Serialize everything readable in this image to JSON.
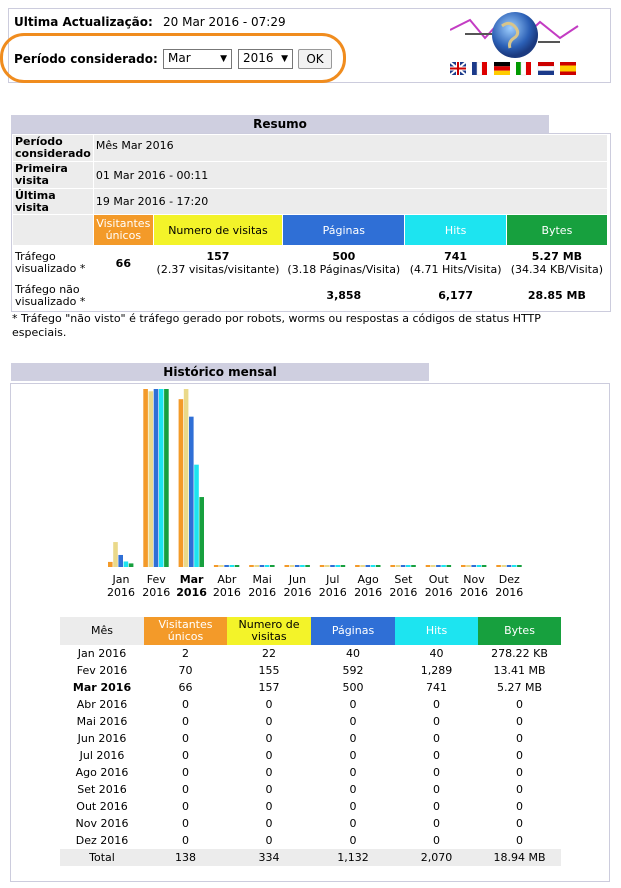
{
  "header": {
    "last_update_label": "Ultima Actualização:",
    "last_update_value": "20 Mar 2016 - 07:29",
    "period_label": "Período considerado:",
    "month_value": "Mar",
    "year_value": "2016",
    "ok_label": "OK"
  },
  "colors": {
    "visitors": "#f39a29",
    "visits": "#f3f329",
    "pages": "#2f6fd6",
    "hits": "#1de4f0",
    "bytes": "#17a03e",
    "highlight": "#f08c1e"
  },
  "summary": {
    "title": "Resumo",
    "period_label": "Período considerado",
    "period_value": "Mês Mar 2016",
    "first_visit_label": "Primeira visita",
    "first_visit_value": "01 Mar 2016 - 00:11",
    "last_visit_label": "Última visita",
    "last_visit_value": "19 Mar 2016 - 17:20",
    "col_visitors": "Visitantes únicos",
    "col_visits": "Numero de visitas",
    "col_pages": "Páginas",
    "col_hits": "Hits",
    "col_bytes": "Bytes",
    "viewed_label": "Tráfego visualizado *",
    "viewed_visitors": "66",
    "viewed_visits": "157",
    "viewed_visits_sub": "(2.37 visitas/visitante)",
    "viewed_pages": "500",
    "viewed_pages_sub": "(3.18 Páginas/Visita)",
    "viewed_hits": "741",
    "viewed_hits_sub": "(4.71 Hits/Visita)",
    "viewed_bytes": "5.27 MB",
    "viewed_bytes_sub": "(34.34 KB/Visita)",
    "notviewed_label": "Tráfego não visualizado *",
    "notviewed_pages": "3,858",
    "notviewed_hits": "6,177",
    "notviewed_bytes": "28.85 MB",
    "footnote": "* Tráfego \"não visto\" é tráfego gerado por robots, worms ou respostas a códigos de status HTTP especiais."
  },
  "history": {
    "title": "Histórico mensal",
    "col_month": "Mês",
    "col_visitors": "Visitantes únicos",
    "col_visits": "Numero de visitas",
    "col_pages": "Páginas",
    "col_hits": "Hits",
    "col_bytes": "Bytes",
    "rows": [
      {
        "month": "Jan 2016",
        "visitors": "2",
        "visits": "22",
        "pages": "40",
        "hits": "40",
        "bytes": "278.22 KB"
      },
      {
        "month": "Fev 2016",
        "visitors": "70",
        "visits": "155",
        "pages": "592",
        "hits": "1,289",
        "bytes": "13.41 MB"
      },
      {
        "month": "Mar 2016",
        "visitors": "66",
        "visits": "157",
        "pages": "500",
        "hits": "741",
        "bytes": "5.27 MB"
      },
      {
        "month": "Abr 2016",
        "visitors": "0",
        "visits": "0",
        "pages": "0",
        "hits": "0",
        "bytes": "0"
      },
      {
        "month": "Mai 2016",
        "visitors": "0",
        "visits": "0",
        "pages": "0",
        "hits": "0",
        "bytes": "0"
      },
      {
        "month": "Jun 2016",
        "visitors": "0",
        "visits": "0",
        "pages": "0",
        "hits": "0",
        "bytes": "0"
      },
      {
        "month": "Jul 2016",
        "visitors": "0",
        "visits": "0",
        "pages": "0",
        "hits": "0",
        "bytes": "0"
      },
      {
        "month": "Ago 2016",
        "visitors": "0",
        "visits": "0",
        "pages": "0",
        "hits": "0",
        "bytes": "0"
      },
      {
        "month": "Set 2016",
        "visitors": "0",
        "visits": "0",
        "pages": "0",
        "hits": "0",
        "bytes": "0"
      },
      {
        "month": "Out 2016",
        "visitors": "0",
        "visits": "0",
        "pages": "0",
        "hits": "0",
        "bytes": "0"
      },
      {
        "month": "Nov 2016",
        "visitors": "0",
        "visits": "0",
        "pages": "0",
        "hits": "0",
        "bytes": "0"
      },
      {
        "month": "Dez 2016",
        "visitors": "0",
        "visits": "0",
        "pages": "0",
        "hits": "0",
        "bytes": "0"
      }
    ],
    "total": {
      "month": "Total",
      "visitors": "138",
      "visits": "334",
      "pages": "1,132",
      "hits": "2,070",
      "bytes": "18.94 MB"
    }
  },
  "chart_data": {
    "type": "bar",
    "categories": [
      "Jan 2016",
      "Fev 2016",
      "Mar 2016",
      "Abr 2016",
      "Mai 2016",
      "Jun 2016",
      "Jul 2016",
      "Ago 2016",
      "Set 2016",
      "Out 2016",
      "Nov 2016",
      "Dez 2016"
    ],
    "month_labels": [
      "Jan",
      "Fev",
      "Mar",
      "Abr",
      "Mai",
      "Jun",
      "Jul",
      "Ago",
      "Set",
      "Out",
      "Nov",
      "Dez"
    ],
    "year_labels": [
      "2016",
      "2016",
      "2016",
      "2016",
      "2016",
      "2016",
      "2016",
      "2016",
      "2016",
      "2016",
      "2016",
      "2016"
    ],
    "current_index": 2,
    "series": [
      {
        "name": "Visitantes únicos",
        "color": "#f39a29",
        "values": [
          2,
          70,
          66,
          0,
          0,
          0,
          0,
          0,
          0,
          0,
          0,
          0
        ]
      },
      {
        "name": "Numero de visitas",
        "color": "#ead98a",
        "values": [
          22,
          155,
          157,
          0,
          0,
          0,
          0,
          0,
          0,
          0,
          0,
          0
        ]
      },
      {
        "name": "Páginas",
        "color": "#2f6fd6",
        "values": [
          40,
          592,
          500,
          0,
          0,
          0,
          0,
          0,
          0,
          0,
          0,
          0
        ]
      },
      {
        "name": "Hits",
        "color": "#1de4f0",
        "values": [
          40,
          1289,
          741,
          0,
          0,
          0,
          0,
          0,
          0,
          0,
          0,
          0
        ]
      },
      {
        "name": "Bytes",
        "color": "#17a03e",
        "values": [
          278.22,
          13731.84,
          5396.48,
          0,
          0,
          0,
          0,
          0,
          0,
          0,
          0,
          0
        ]
      }
    ],
    "grid": false,
    "legend": "none"
  }
}
